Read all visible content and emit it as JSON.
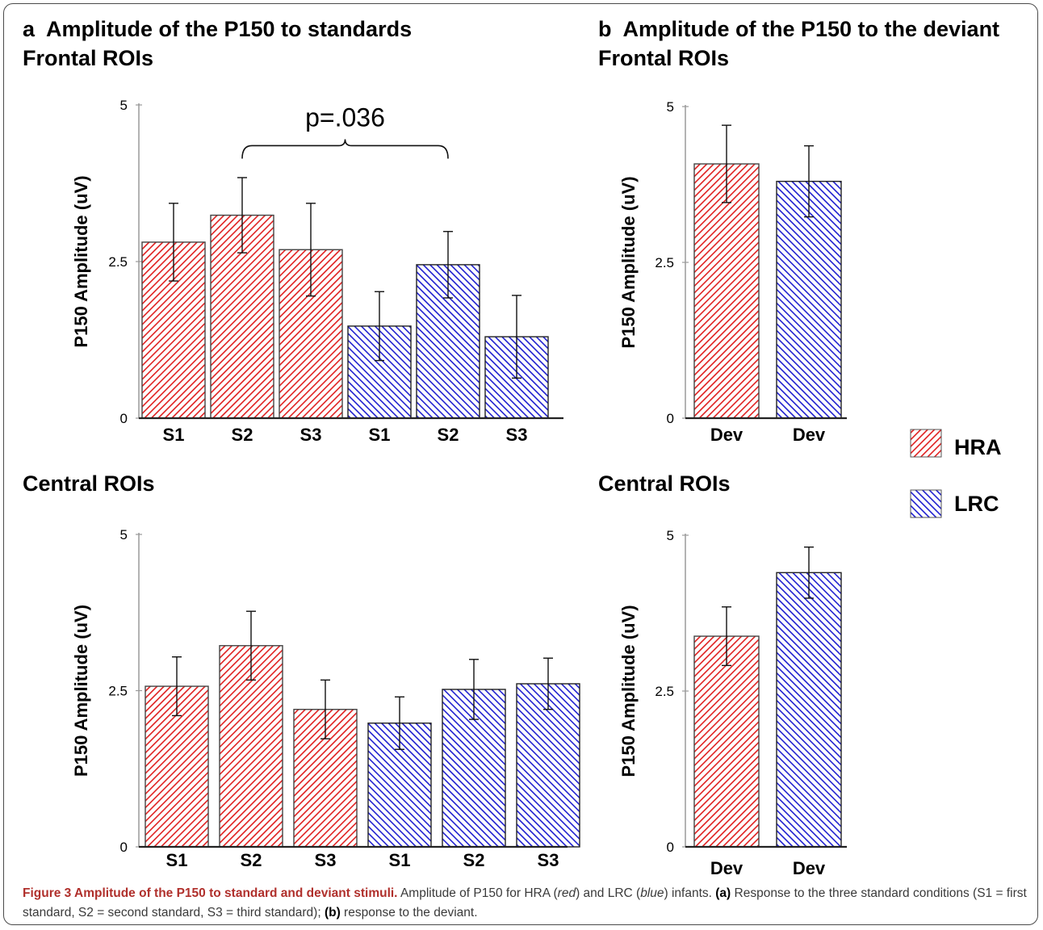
{
  "colors": {
    "hra": "#e02020",
    "lrc": "#2020d0",
    "caption_title": "#b0302c"
  },
  "legend": [
    {
      "key": "hra",
      "label": "HRA"
    },
    {
      "key": "lrc",
      "label": "LRC"
    }
  ],
  "headings": {
    "a_title": "a  Amplitude of the P150 to standards",
    "b_title": "b  Amplitude of the P150 to the deviant",
    "frontal_a": "Frontal ROIs",
    "frontal_b": "Frontal ROIs",
    "central_a": "Central ROIs",
    "central_b": "Central ROIs"
  },
  "caption": {
    "title": "Figure 3 Amplitude of the P150 to standard and deviant stimuli.",
    "text1": " Amplitude of P150 for HRA (",
    "red": "red",
    "text2": ") and LRC (",
    "blue": "blue",
    "text3": ") infants. ",
    "a_label": "(a)",
    "text4": " Response to the three standard conditions (S1 = first standard, S2 = second standard, S3 = third standard); ",
    "b_label": "(b)",
    "text5": " response to the deviant."
  },
  "chart_data": [
    {
      "id": "a-frontal",
      "type": "bar",
      "ylabel": "P150 Amplitude (uV)",
      "ylim": [
        0,
        5
      ],
      "yticks": [
        {
          "v": 0,
          "label": "0"
        },
        {
          "v": 2.5,
          "label": "2.5"
        },
        {
          "v": 5,
          "label": "5"
        }
      ],
      "bars": [
        {
          "label": "S1",
          "group": "hra",
          "value": 2.81,
          "err": 0.62
        },
        {
          "label": "S2",
          "group": "hra",
          "value": 3.24,
          "err": 0.6
        },
        {
          "label": "S3",
          "group": "hra",
          "value": 2.69,
          "err": 0.74
        },
        {
          "label": "S1",
          "group": "lrc",
          "value": 1.47,
          "err": 0.55
        },
        {
          "label": "S2",
          "group": "lrc",
          "value": 2.45,
          "err": 0.53
        },
        {
          "label": "S3",
          "group": "lrc",
          "value": 1.3,
          "err": 0.66
        }
      ],
      "annotation": {
        "text": "p=.036",
        "from": 1,
        "to": 4,
        "at": 4.35
      }
    },
    {
      "id": "a-central",
      "type": "bar",
      "ylabel": "P150 Amplitude (uV)",
      "ylim": [
        0,
        5
      ],
      "yticks": [
        {
          "v": 0,
          "label": "0"
        },
        {
          "v": 2.5,
          "label": "2.5"
        },
        {
          "v": 5,
          "label": "5"
        }
      ],
      "bars": [
        {
          "label": "S1",
          "group": "hra",
          "value": 2.57,
          "err": 0.47
        },
        {
          "label": "S2",
          "group": "hra",
          "value": 3.22,
          "err": 0.55
        },
        {
          "label": "S3",
          "group": "hra",
          "value": 2.2,
          "err": 0.47
        },
        {
          "label": "S1",
          "group": "lrc",
          "value": 1.98,
          "err": 0.42
        },
        {
          "label": "S2",
          "group": "lrc",
          "value": 2.52,
          "err": 0.48
        },
        {
          "label": "S3",
          "group": "lrc",
          "value": 2.61,
          "err": 0.41
        }
      ]
    },
    {
      "id": "b-frontal",
      "type": "bar",
      "ylabel": "P150 Amplitude (uV)",
      "ylim": [
        0,
        5
      ],
      "yticks": [
        {
          "v": 0,
          "label": "0"
        },
        {
          "v": 2.5,
          "label": "2.5"
        },
        {
          "v": 5,
          "label": "5"
        }
      ],
      "bars": [
        {
          "label": "Dev",
          "group": "hra",
          "value": 4.08,
          "err": 0.62
        },
        {
          "label": "Dev",
          "group": "lrc",
          "value": 3.8,
          "err": 0.57
        }
      ]
    },
    {
      "id": "b-central",
      "type": "bar",
      "ylabel": "P150 Amplitude (uV)",
      "ylim": [
        0,
        5
      ],
      "yticks": [
        {
          "v": 0,
          "label": "0"
        },
        {
          "v": 2.5,
          "label": "2.5"
        },
        {
          "v": 5,
          "label": "5"
        }
      ],
      "bars": [
        {
          "label": "Dev",
          "group": "hra",
          "value": 3.38,
          "err": 0.47
        },
        {
          "label": "Dev",
          "group": "lrc",
          "value": 4.4,
          "err": 0.41
        }
      ]
    }
  ]
}
